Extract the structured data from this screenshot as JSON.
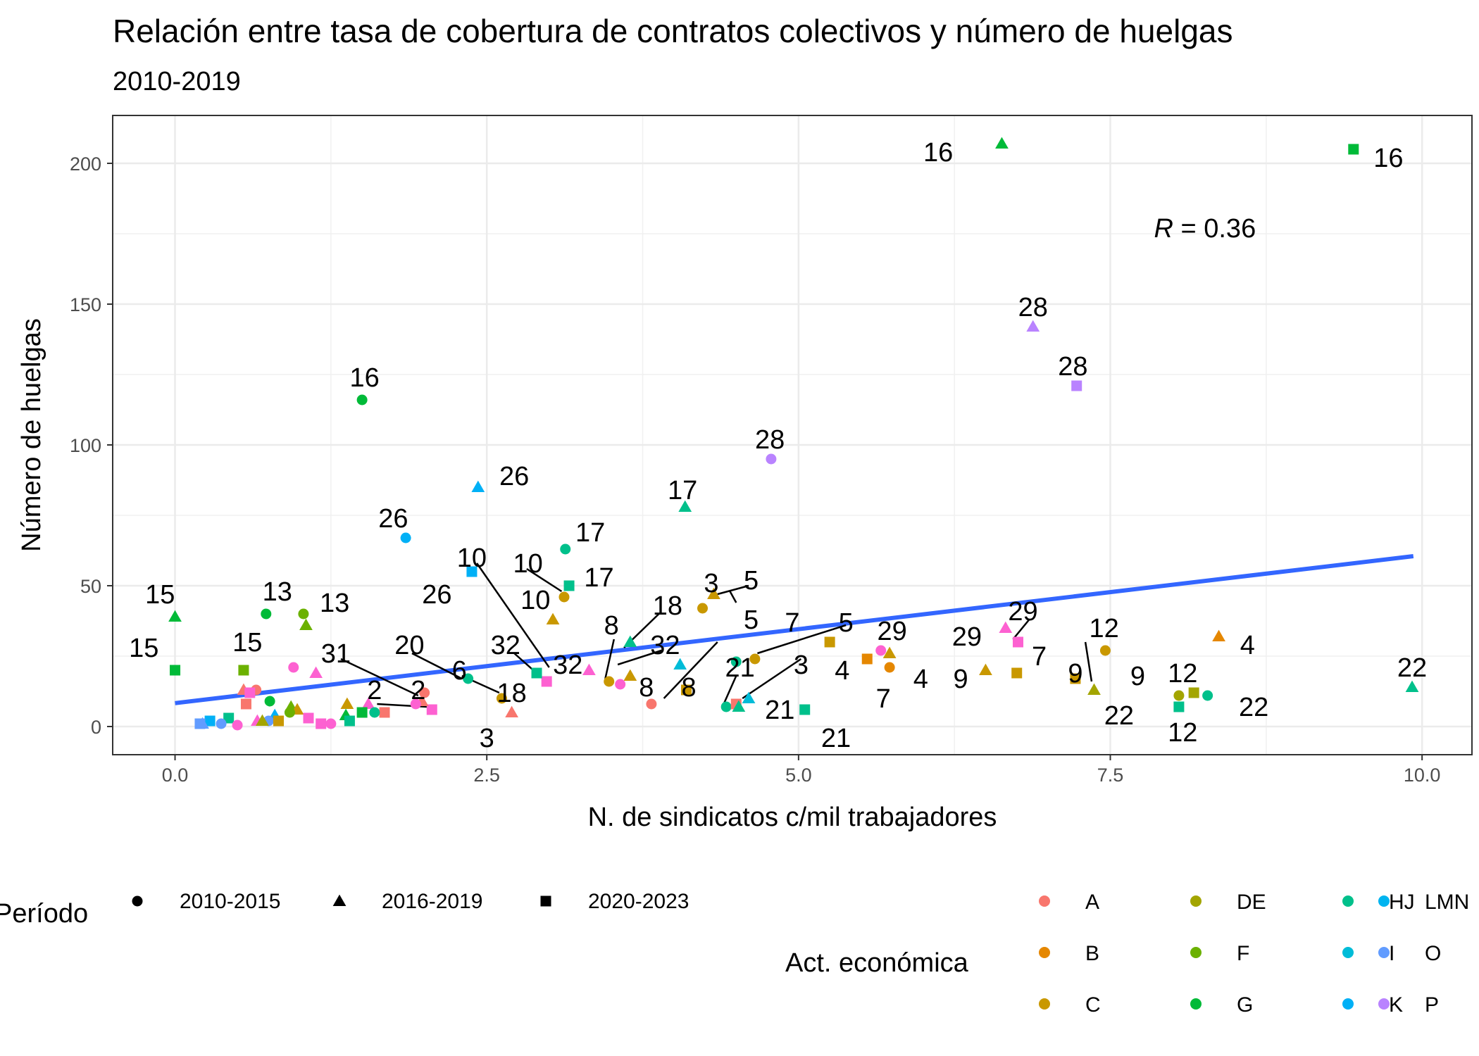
{
  "chart_data": {
    "type": "scatter",
    "title": "Relación entre tasa de cobertura de contratos colectivos y número de huelgas",
    "subtitle": "2010-2019",
    "xlabel": "N. de sindicatos c/mil trabajadores",
    "ylabel": "Número de huelgas",
    "xlim": [
      -0.5,
      10.4
    ],
    "ylim": [
      -10,
      217
    ],
    "x_ticks": [
      "0.0",
      "2.5",
      "5.0",
      "7.5",
      "10.0"
    ],
    "x_tick_values": [
      0,
      2.5,
      5,
      7.5,
      10
    ],
    "y_ticks": [
      "0",
      "50",
      "100",
      "150",
      "200"
    ],
    "y_tick_values": [
      0,
      50,
      100,
      150,
      200
    ],
    "grid": true,
    "correlation_text": {
      "italic": "R",
      "rest": " = 0.36",
      "x": 7.85,
      "y": 177
    },
    "trend_line": {
      "x": [
        0,
        9.93
      ],
      "y": [
        8.3,
        60.5
      ],
      "color": "#3366FF"
    },
    "colors": {
      "A": "#F8766D",
      "B": "#E58700",
      "C": "#C99800",
      "DE": "#A3A500",
      "F": "#6BB100",
      "G": "#00BA38",
      "HJ": "#00C08B",
      "I": "#00BCD8",
      "K": "#00B0F6",
      "LMN": "#00B4F0",
      "O": "#619CFF",
      "P": "#B983FF",
      "Q": "#E76BF3",
      "R": "#FD61D1"
    },
    "points": [
      {
        "x": 0.0,
        "y": 39,
        "shape": "triangle",
        "cat": "G",
        "label": "15"
      },
      {
        "x": 0.0,
        "y": 20,
        "shape": "square",
        "cat": "G",
        "label": "15"
      },
      {
        "x": 0.55,
        "y": 20,
        "shape": "square",
        "cat": "F",
        "label": "15"
      },
      {
        "x": 0.73,
        "y": 40,
        "shape": "circle",
        "cat": "G",
        "label": "13"
      },
      {
        "x": 1.03,
        "y": 40,
        "shape": "circle",
        "cat": "F",
        "label": ""
      },
      {
        "x": 1.05,
        "y": 36,
        "shape": "triangle",
        "cat": "F",
        "label": "13"
      },
      {
        "x": 1.5,
        "y": 116,
        "shape": "circle",
        "cat": "G",
        "label": "16"
      },
      {
        "x": 1.85,
        "y": 67,
        "shape": "circle",
        "cat": "K",
        "label": "26"
      },
      {
        "x": 2.43,
        "y": 85,
        "shape": "triangle",
        "cat": "K",
        "label": "26"
      },
      {
        "x": 2.38,
        "y": 55,
        "shape": "square",
        "cat": "K",
        "label": "10"
      },
      {
        "x": 2.35,
        "y": 17,
        "shape": "circle",
        "cat": "HJ",
        "label": "26"
      },
      {
        "x": 3.13,
        "y": 63,
        "shape": "circle",
        "cat": "HJ",
        "label": "17"
      },
      {
        "x": 3.16,
        "y": 50,
        "shape": "square",
        "cat": "HJ",
        "label": "17"
      },
      {
        "x": 3.12,
        "y": 46,
        "shape": "circle",
        "cat": "C",
        "label": "10"
      },
      {
        "x": 3.03,
        "y": 38,
        "shape": "triangle",
        "cat": "C",
        "label": "10"
      },
      {
        "x": 4.09,
        "y": 78,
        "shape": "triangle",
        "cat": "HJ",
        "label": "17"
      },
      {
        "x": 4.78,
        "y": 95,
        "shape": "circle",
        "cat": "P",
        "label": "28"
      },
      {
        "x": 6.63,
        "y": 207,
        "shape": "triangle",
        "cat": "G",
        "label": "16"
      },
      {
        "x": 9.45,
        "y": 205,
        "shape": "square",
        "cat": "G",
        "label": "16"
      },
      {
        "x": 6.88,
        "y": 142,
        "shape": "triangle",
        "cat": "P",
        "label": "28"
      },
      {
        "x": 7.23,
        "y": 121,
        "shape": "square",
        "cat": "P",
        "label": "28"
      },
      {
        "x": 9.92,
        "y": 14,
        "shape": "triangle",
        "cat": "HJ",
        "label": "22"
      },
      {
        "x": 8.28,
        "y": 11,
        "shape": "circle",
        "cat": "HJ",
        "label": "22"
      },
      {
        "x": 8.05,
        "y": 11,
        "shape": "circle",
        "cat": "DE",
        "label": "12"
      },
      {
        "x": 8.17,
        "y": 12,
        "shape": "square",
        "cat": "DE",
        "label": ""
      },
      {
        "x": 8.05,
        "y": 7,
        "shape": "square",
        "cat": "HJ",
        "label": "12"
      },
      {
        "x": 8.37,
        "y": 32,
        "shape": "triangle",
        "cat": "B",
        "label": "4"
      },
      {
        "x": 7.46,
        "y": 27,
        "shape": "circle",
        "cat": "C",
        "label": "9"
      },
      {
        "x": 7.37,
        "y": 13,
        "shape": "triangle",
        "cat": "DE",
        "label": "12"
      },
      {
        "x": 7.22,
        "y": 17,
        "shape": "square",
        "cat": "C",
        "label": "9"
      },
      {
        "x": 6.66,
        "y": 35,
        "shape": "triangle",
        "cat": "R",
        "label": "29"
      },
      {
        "x": 6.76,
        "y": 30,
        "shape": "square",
        "cat": "R",
        "label": "29"
      },
      {
        "x": 6.75,
        "y": 19,
        "shape": "square",
        "cat": "C",
        "label": "7"
      },
      {
        "x": 6.5,
        "y": 20,
        "shape": "triangle",
        "cat": "C",
        "label": "9"
      },
      {
        "x": 5.66,
        "y": 27,
        "shape": "circle",
        "cat": "R",
        "label": "29"
      },
      {
        "x": 5.73,
        "y": 26,
        "shape": "triangle",
        "cat": "C",
        "label": ""
      },
      {
        "x": 5.73,
        "y": 21,
        "shape": "circle",
        "cat": "B",
        "label": "4"
      },
      {
        "x": 5.55,
        "y": 24,
        "shape": "square",
        "cat": "B",
        "label": "7"
      },
      {
        "x": 5.25,
        "y": 30,
        "shape": "square",
        "cat": "C",
        "label": "5"
      },
      {
        "x": 5.05,
        "y": 6,
        "shape": "square",
        "cat": "HJ",
        "label": "21"
      },
      {
        "x": 4.65,
        "y": 24,
        "shape": "circle",
        "cat": "C",
        "label": "7"
      },
      {
        "x": 4.5,
        "y": 23,
        "shape": "circle",
        "cat": "HJ",
        "label": "5"
      },
      {
        "x": 4.32,
        "y": 47,
        "shape": "triangle",
        "cat": "C",
        "label": "5"
      },
      {
        "x": 4.23,
        "y": 42,
        "shape": "circle",
        "cat": "C",
        "label": "3"
      },
      {
        "x": 4.6,
        "y": 10,
        "shape": "triangle",
        "cat": "I",
        "label": ""
      },
      {
        "x": 4.42,
        "y": 7,
        "shape": "circle",
        "cat": "HJ",
        "label": "21"
      },
      {
        "x": 4.5,
        "y": 8,
        "shape": "square",
        "cat": "A",
        "label": "3"
      },
      {
        "x": 4.52,
        "y": 7,
        "shape": "triangle",
        "cat": "HJ",
        "label": ""
      },
      {
        "x": 4.05,
        "y": 22,
        "shape": "triangle",
        "cat": "I",
        "label": ""
      },
      {
        "x": 4.1,
        "y": 13,
        "shape": "square",
        "cat": "C",
        "label": "8"
      },
      {
        "x": 3.82,
        "y": 8,
        "shape": "circle",
        "cat": "A",
        "label": "3"
      },
      {
        "x": 3.65,
        "y": 30,
        "shape": "triangle",
        "cat": "HJ",
        "label": "18"
      },
      {
        "x": 3.65,
        "y": 18,
        "shape": "triangle",
        "cat": "C",
        "label": "32"
      },
      {
        "x": 3.48,
        "y": 16,
        "shape": "circle",
        "cat": "C",
        "label": "8"
      },
      {
        "x": 3.57,
        "y": 15,
        "shape": "circle",
        "cat": "R",
        "label": "8"
      },
      {
        "x": 3.32,
        "y": 20,
        "shape": "triangle",
        "cat": "R",
        "label": ""
      },
      {
        "x": 2.98,
        "y": 16,
        "shape": "square",
        "cat": "R",
        "label": "32"
      },
      {
        "x": 2.9,
        "y": 19,
        "shape": "square",
        "cat": "HJ",
        "label": "32"
      },
      {
        "x": 2.62,
        "y": 10,
        "shape": "circle",
        "cat": "C",
        "label": "18"
      },
      {
        "x": 2.7,
        "y": 5,
        "shape": "triangle",
        "cat": "A",
        "label": "3"
      },
      {
        "x": 2.06,
        "y": 6,
        "shape": "square",
        "cat": "R",
        "label": "20"
      },
      {
        "x": 2.0,
        "y": 12,
        "shape": "circle",
        "cat": "A",
        "label": ""
      },
      {
        "x": 1.98,
        "y": 9,
        "shape": "triangle",
        "cat": "A",
        "label": "2"
      },
      {
        "x": 1.93,
        "y": 8,
        "shape": "circle",
        "cat": "R",
        "label": "31"
      },
      {
        "x": 1.55,
        "y": 8,
        "shape": "triangle",
        "cat": "R",
        "label": "2"
      },
      {
        "x": 1.68,
        "y": 5,
        "shape": "square",
        "cat": "A",
        "label": ""
      },
      {
        "x": 1.38,
        "y": 8,
        "shape": "triangle",
        "cat": "C",
        "label": ""
      },
      {
        "x": 1.37,
        "y": 4,
        "shape": "triangle",
        "cat": "G",
        "label": ""
      },
      {
        "x": 1.5,
        "y": 5,
        "shape": "square",
        "cat": "G",
        "label": ""
      },
      {
        "x": 1.6,
        "y": 5,
        "shape": "circle",
        "cat": "HJ",
        "label": ""
      },
      {
        "x": 1.4,
        "y": 2,
        "shape": "square",
        "cat": "HJ",
        "label": ""
      },
      {
        "x": 1.13,
        "y": 19,
        "shape": "triangle",
        "cat": "R",
        "label": ""
      },
      {
        "x": 0.95,
        "y": 21,
        "shape": "circle",
        "cat": "R",
        "label": ""
      },
      {
        "x": 0.76,
        "y": 9,
        "shape": "circle",
        "cat": "G",
        "label": ""
      },
      {
        "x": 0.93,
        "y": 7,
        "shape": "triangle",
        "cat": "F",
        "label": ""
      },
      {
        "x": 0.98,
        "y": 6,
        "shape": "triangle",
        "cat": "C",
        "label": ""
      },
      {
        "x": 0.92,
        "y": 5,
        "shape": "circle",
        "cat": "F",
        "label": ""
      },
      {
        "x": 0.55,
        "y": 13,
        "shape": "triangle",
        "cat": "A",
        "label": ""
      },
      {
        "x": 0.65,
        "y": 13,
        "shape": "circle",
        "cat": "A",
        "label": ""
      },
      {
        "x": 0.6,
        "y": 12,
        "shape": "square",
        "cat": "R",
        "label": ""
      },
      {
        "x": 0.57,
        "y": 8,
        "shape": "square",
        "cat": "A",
        "label": ""
      },
      {
        "x": 0.8,
        "y": 4,
        "shape": "triangle",
        "cat": "K",
        "label": ""
      },
      {
        "x": 0.75,
        "y": 2,
        "shape": "circle",
        "cat": "O",
        "label": ""
      },
      {
        "x": 0.83,
        "y": 2,
        "shape": "square",
        "cat": "C",
        "label": ""
      },
      {
        "x": 0.66,
        "y": 2,
        "shape": "triangle",
        "cat": "R",
        "label": ""
      },
      {
        "x": 0.7,
        "y": 2,
        "shape": "triangle",
        "cat": "DE",
        "label": ""
      },
      {
        "x": 0.43,
        "y": 3,
        "shape": "square",
        "cat": "HJ",
        "label": ""
      },
      {
        "x": 0.28,
        "y": 2,
        "shape": "square",
        "cat": "K",
        "label": ""
      },
      {
        "x": 0.37,
        "y": 1,
        "shape": "circle",
        "cat": "O",
        "label": ""
      },
      {
        "x": 0.5,
        "y": 0.5,
        "shape": "circle",
        "cat": "R",
        "label": ""
      },
      {
        "x": 0.2,
        "y": 1,
        "shape": "square",
        "cat": "O",
        "label": ""
      },
      {
        "x": 0.22,
        "y": 1,
        "shape": "triangle",
        "cat": "O",
        "label": ""
      },
      {
        "x": 1.07,
        "y": 3,
        "shape": "square",
        "cat": "R",
        "label": ""
      },
      {
        "x": 1.17,
        "y": 1,
        "shape": "square",
        "cat": "R",
        "label": ""
      },
      {
        "x": 1.25,
        "y": 1,
        "shape": "circle",
        "cat": "R",
        "label": ""
      }
    ],
    "labels": [
      {
        "text": "15",
        "x": -0.12,
        "y": 47
      },
      {
        "text": "15",
        "x": -0.25,
        "y": 28
      },
      {
        "text": "15",
        "x": 0.58,
        "y": 30
      },
      {
        "text": "13",
        "x": 0.82,
        "y": 48
      },
      {
        "text": "13",
        "x": 1.28,
        "y": 44
      },
      {
        "text": "16",
        "x": 1.52,
        "y": 124
      },
      {
        "text": "26",
        "x": 1.75,
        "y": 74
      },
      {
        "text": "26",
        "x": 2.72,
        "y": 89
      },
      {
        "text": "17",
        "x": 3.33,
        "y": 69
      },
      {
        "text": "17",
        "x": 3.4,
        "y": 53
      },
      {
        "text": "10",
        "x": 2.38,
        "y": 60
      },
      {
        "text": "10",
        "x": 2.83,
        "y": 58
      },
      {
        "text": "10",
        "x": 2.89,
        "y": 45
      },
      {
        "text": "26",
        "x": 2.1,
        "y": 47
      },
      {
        "text": "17",
        "x": 4.07,
        "y": 84
      },
      {
        "text": "28",
        "x": 4.77,
        "y": 102
      },
      {
        "text": "16",
        "x": 6.12,
        "y": 204
      },
      {
        "text": "16",
        "x": 9.73,
        "y": 202
      },
      {
        "text": "28",
        "x": 6.88,
        "y": 149
      },
      {
        "text": "28",
        "x": 7.2,
        "y": 128
      },
      {
        "text": "22",
        "x": 9.92,
        "y": 21
      },
      {
        "text": "22",
        "x": 8.65,
        "y": 7
      },
      {
        "text": "12",
        "x": 8.08,
        "y": 19
      },
      {
        "text": "12",
        "x": 8.08,
        "y": -2
      },
      {
        "text": "4",
        "x": 8.6,
        "y": 29
      },
      {
        "text": "12",
        "x": 7.45,
        "y": 35
      },
      {
        "text": "9",
        "x": 7.72,
        "y": 18
      },
      {
        "text": "22",
        "x": 7.57,
        "y": 4
      },
      {
        "text": "9",
        "x": 7.22,
        "y": 19
      },
      {
        "text": "29",
        "x": 6.8,
        "y": 41
      },
      {
        "text": "29",
        "x": 6.35,
        "y": 32
      },
      {
        "text": "7",
        "x": 6.93,
        "y": 25
      },
      {
        "text": "9",
        "x": 6.3,
        "y": 17
      },
      {
        "text": "29",
        "x": 5.75,
        "y": 34
      },
      {
        "text": "4",
        "x": 5.98,
        "y": 17
      },
      {
        "text": "7",
        "x": 5.68,
        "y": 10
      },
      {
        "text": "4",
        "x": 5.35,
        "y": 20
      },
      {
        "text": "5",
        "x": 5.38,
        "y": 37
      },
      {
        "text": "21",
        "x": 5.3,
        "y": -4
      },
      {
        "text": "7",
        "x": 4.95,
        "y": 37
      },
      {
        "text": "5",
        "x": 4.62,
        "y": 38
      },
      {
        "text": "5",
        "x": 4.62,
        "y": 52
      },
      {
        "text": "3",
        "x": 4.3,
        "y": 51
      },
      {
        "text": "3",
        "x": 5.02,
        "y": 22
      },
      {
        "text": "21",
        "x": 4.53,
        "y": 21
      },
      {
        "text": "21",
        "x": 4.85,
        "y": 6
      },
      {
        "text": "8",
        "x": 4.12,
        "y": 14
      },
      {
        "text": "8",
        "x": 3.78,
        "y": 14
      },
      {
        "text": "18",
        "x": 3.95,
        "y": 43
      },
      {
        "text": "32",
        "x": 3.93,
        "y": 29
      },
      {
        "text": "8",
        "x": 3.5,
        "y": 36
      },
      {
        "text": "32",
        "x": 3.15,
        "y": 22
      },
      {
        "text": "32",
        "x": 2.65,
        "y": 29
      },
      {
        "text": "18",
        "x": 2.7,
        "y": 12
      },
      {
        "text": "3",
        "x": 2.5,
        "y": -4
      },
      {
        "text": "6",
        "x": 2.28,
        "y": 20
      },
      {
        "text": "20",
        "x": 1.88,
        "y": 29
      },
      {
        "text": "31",
        "x": 1.29,
        "y": 26
      },
      {
        "text": "2",
        "x": 1.6,
        "y": 13
      },
      {
        "text": "2",
        "x": 1.95,
        "y": 13
      }
    ],
    "connectors": [
      [
        2.42,
        58,
        3.0,
        21
      ],
      [
        2.82,
        56,
        3.1,
        48
      ],
      [
        4.35,
        30,
        3.92,
        10
      ],
      [
        4.35,
        47,
        4.6,
        50
      ],
      [
        4.45,
        48,
        4.5,
        44
      ],
      [
        5.02,
        24,
        4.55,
        10
      ],
      [
        4.5,
        18,
        4.4,
        8
      ],
      [
        5.38,
        36,
        4.67,
        26
      ],
      [
        3.55,
        22,
        3.9,
        27
      ],
      [
        3.6,
        28,
        3.88,
        40
      ],
      [
        3.45,
        17,
        3.52,
        31
      ],
      [
        2.72,
        26,
        2.95,
        17
      ],
      [
        2.3,
        18,
        2.6,
        12
      ],
      [
        1.9,
        26,
        2.3,
        17
      ],
      [
        1.33,
        24,
        1.95,
        11
      ],
      [
        1.62,
        8,
        2.02,
        7
      ],
      [
        6.85,
        38,
        6.72,
        31
      ],
      [
        7.3,
        30,
        7.35,
        16
      ]
    ],
    "legend": {
      "shape_title": "Período",
      "shapes": [
        {
          "shape": "circle",
          "label": "2010-2015"
        },
        {
          "shape": "triangle",
          "label": "2016-2019"
        },
        {
          "shape": "square",
          "label": "2020-2023"
        }
      ],
      "color_title": "Act. económica",
      "colors": [
        {
          "key": "A",
          "label": "A"
        },
        {
          "key": "B",
          "label": "B"
        },
        {
          "key": "C",
          "label": "C"
        },
        {
          "key": "DE",
          "label": "DE"
        },
        {
          "key": "F",
          "label": "F"
        },
        {
          "key": "G",
          "label": "G"
        },
        {
          "key": "HJ",
          "label": "HJ"
        },
        {
          "key": "I",
          "label": "I"
        },
        {
          "key": "K",
          "label": "K"
        },
        {
          "key": "LMN",
          "label": "LMN"
        },
        {
          "key": "O",
          "label": "O"
        },
        {
          "key": "P",
          "label": "P"
        }
      ]
    }
  }
}
